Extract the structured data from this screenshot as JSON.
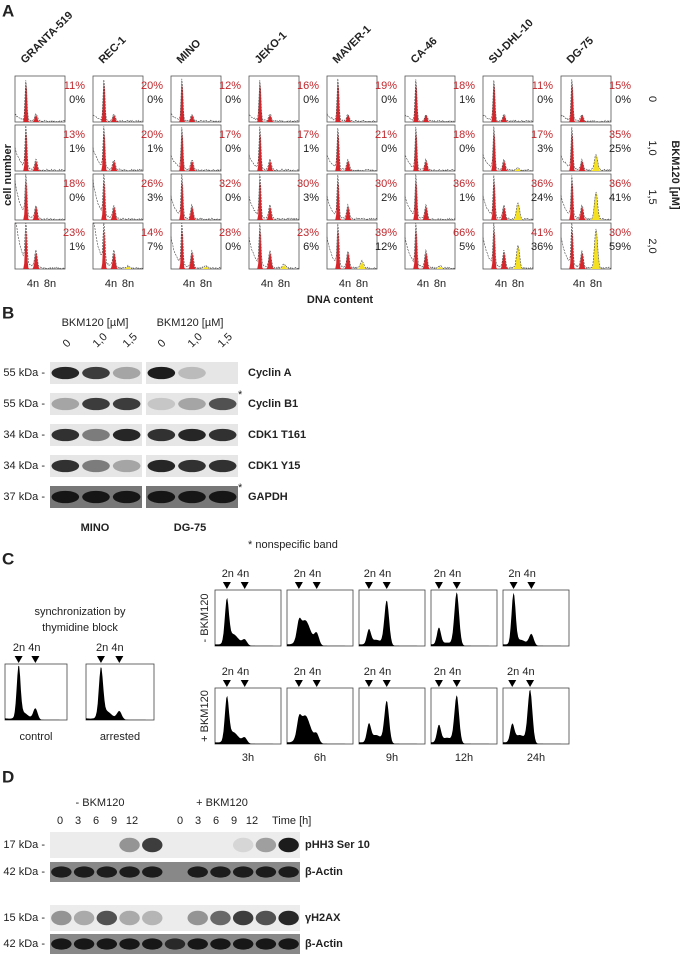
{
  "panel_a": {
    "label": "A",
    "cell_lines": [
      "GRANTA-519",
      "REC-1",
      "MINO",
      "JEKO-1",
      "MAVER-1",
      "CA-46",
      "SU-DHL-10",
      "DG-75"
    ],
    "doses": [
      "0",
      "1,0",
      "1,5",
      "2,0"
    ],
    "dose_axis": "BKM120 [µM]",
    "y_axis": "cell number",
    "x_axis": "DNA content",
    "ploidy_labels": [
      "4n",
      "8n"
    ],
    "percent_red": [
      [
        "11%",
        "20%",
        "12%",
        "16%",
        "19%",
        "18%",
        "11%",
        "15%"
      ],
      [
        "13%",
        "20%",
        "17%",
        "17%",
        "21%",
        "18%",
        "17%",
        "35%"
      ],
      [
        "18%",
        "26%",
        "32%",
        "30%",
        "30%",
        "36%",
        "36%",
        "36%"
      ],
      [
        "23%",
        "14%",
        "28%",
        "23%",
        "39%",
        "66%",
        "41%",
        "30%"
      ]
    ],
    "percent_black": [
      [
        "0%",
        "0%",
        "0%",
        "0%",
        "0%",
        "1%",
        "0%",
        "0%"
      ],
      [
        "1%",
        "1%",
        "0%",
        "1%",
        "0%",
        "0%",
        "3%",
        "25%"
      ],
      [
        "0%",
        "3%",
        "0%",
        "3%",
        "2%",
        "1%",
        "24%",
        "41%"
      ],
      [
        "1%",
        "7%",
        "0%",
        "6%",
        "12%",
        "5%",
        "36%",
        "59%"
      ]
    ]
  },
  "panel_b": {
    "label": "B",
    "treatment": "BKM120 [µM]",
    "doses": [
      "0",
      "1,0",
      "1,5"
    ],
    "markers": [
      "55 kDa -",
      "55 kDa -",
      "34 kDa -",
      "34 kDa -",
      "37 kDa -"
    ],
    "proteins": [
      "Cyclin A",
      "Cyclin B1",
      "CDK1 T161",
      "CDK1 Y15",
      "GAPDH"
    ],
    "asterisk": "*",
    "cell_lines": [
      "MINO",
      "DG-75"
    ],
    "footnote": "* nonspecific band"
  },
  "panel_c": {
    "label": "C",
    "sync_title": [
      "synchronization by",
      "thymidine block"
    ],
    "peak_labels": "2n 4n",
    "conditions": [
      "control",
      "arrested"
    ],
    "rows": [
      "- BKM120",
      "+ BKM120"
    ],
    "times": [
      "3h",
      "6h",
      "9h",
      "12h",
      "24h"
    ]
  },
  "panel_d": {
    "label": "D",
    "groups": [
      "- BKM120",
      "+ BKM120"
    ],
    "time_axis": "Time [h]",
    "times": [
      "0",
      "3",
      "6",
      "9",
      "12"
    ],
    "markers": [
      "17 kDa -",
      "42 kDa -",
      "15 kDa -",
      "42 kDa -"
    ],
    "proteins": [
      "pHH3 Ser 10",
      "β-Actin",
      "γH2AX",
      "β-Actin"
    ]
  }
}
